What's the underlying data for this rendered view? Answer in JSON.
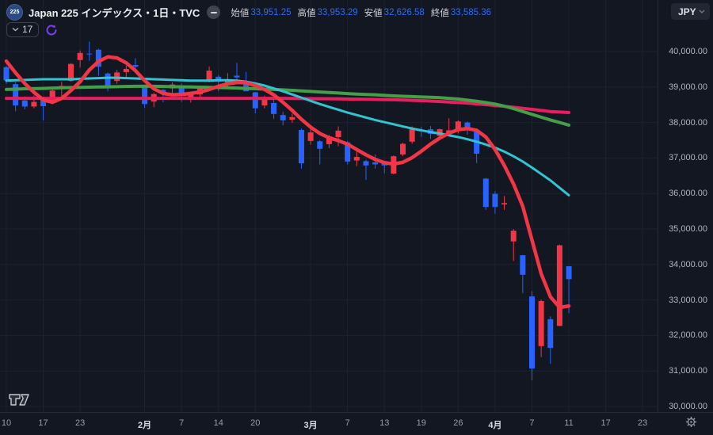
{
  "header": {
    "symbol_badge": "225",
    "title": "Japan 225 インデックス・1日・TVC",
    "ohlc": [
      {
        "label": "始値",
        "value": "33,951.25"
      },
      {
        "label": "高値",
        "value": "33,953.29"
      },
      {
        "label": "安値",
        "value": "32,626.58"
      },
      {
        "label": "終値",
        "value": "33,585.36"
      }
    ],
    "indicators_count": "17",
    "currency_button": "JPY"
  },
  "colors": {
    "background": "#131722",
    "grid": "#1d2231",
    "candle_up": "#f23645",
    "candle_down": "#2962ff",
    "value_text": "#2e6bf2",
    "axis_text": "#b2b5be",
    "sync_icon": "#7b3ff2"
  },
  "chart_data": {
    "type": "candlestick",
    "title": "Japan 225 インデックス・1日・TVC",
    "interval": "1日",
    "currency": "JPY",
    "legend_note": "red = bullish (陽線), blue = bearish (陰線)",
    "ylim": [
      29800,
      40400
    ],
    "grid": true,
    "y_axis": {
      "ticks": [
        {
          "value": 40000,
          "label": "40,000.00"
        },
        {
          "value": 39000,
          "label": "39,000.00"
        },
        {
          "value": 38000,
          "label": "38,000.00"
        },
        {
          "value": 37000,
          "label": "37,000.00"
        },
        {
          "value": 36000,
          "label": "36,000.00"
        },
        {
          "value": 35000,
          "label": "35,000.00"
        },
        {
          "value": 34000,
          "label": "34,000.00"
        },
        {
          "value": 33000,
          "label": "33,000.00"
        },
        {
          "value": 32000,
          "label": "32,000.00"
        },
        {
          "value": 31000,
          "label": "31,000.00"
        },
        {
          "value": 30000,
          "label": "30,000.00"
        }
      ]
    },
    "x_axis": {
      "ticks": [
        {
          "index": 0,
          "label": "10",
          "bold": false
        },
        {
          "index": 4,
          "label": "17",
          "bold": false
        },
        {
          "index": 8,
          "label": "23",
          "bold": false
        },
        {
          "index": 15,
          "label": "2月",
          "bold": true
        },
        {
          "index": 19,
          "label": "7",
          "bold": false
        },
        {
          "index": 23,
          "label": "14",
          "bold": false
        },
        {
          "index": 27,
          "label": "20",
          "bold": false
        },
        {
          "index": 33,
          "label": "3月",
          "bold": true
        },
        {
          "index": 37,
          "label": "7",
          "bold": false
        },
        {
          "index": 41,
          "label": "13",
          "bold": false
        },
        {
          "index": 45,
          "label": "19",
          "bold": false
        },
        {
          "index": 49,
          "label": "26",
          "bold": false
        },
        {
          "index": 53,
          "label": "4月",
          "bold": true
        },
        {
          "index": 57,
          "label": "7",
          "bold": false
        },
        {
          "index": 61,
          "label": "11",
          "bold": false
        },
        {
          "index": 65,
          "label": "17",
          "bold": false
        },
        {
          "index": 69,
          "label": "23",
          "bold": false
        }
      ]
    },
    "candle_columns": [
      "date",
      "open",
      "high",
      "low",
      "close"
    ],
    "candles": [
      [
        "1/10",
        39560,
        39590,
        39090,
        39190
      ],
      [
        "1/14",
        39080,
        39140,
        38320,
        38480
      ],
      [
        "1/15",
        38620,
        38740,
        38370,
        38450
      ],
      [
        "1/16",
        38450,
        38760,
        38400,
        38580
      ],
      [
        "1/17",
        38640,
        38710,
        38060,
        38460
      ],
      [
        "1/20",
        38560,
        38930,
        38520,
        38900
      ],
      [
        "1/21",
        38990,
        39150,
        38720,
        39030
      ],
      [
        "1/22",
        39170,
        39670,
        39150,
        39650
      ],
      [
        "1/23",
        39760,
        40030,
        39550,
        39960
      ],
      [
        "1/24",
        39940,
        40280,
        39740,
        39930
      ],
      [
        "1/27",
        40050,
        40080,
        39320,
        39570
      ],
      [
        "1/28",
        39380,
        39410,
        38880,
        39020
      ],
      [
        "1/29",
        39170,
        39480,
        39090,
        39410
      ],
      [
        "1/30",
        39420,
        39600,
        39230,
        39510
      ],
      [
        "1/31",
        39620,
        39810,
        39410,
        39570
      ],
      [
        "2/3",
        38990,
        39000,
        38410,
        38520
      ],
      [
        "2/4",
        38590,
        38830,
        38430,
        38800
      ],
      [
        "2/5",
        38920,
        38940,
        38570,
        38830
      ],
      [
        "2/6",
        38960,
        39130,
        38800,
        39070
      ],
      [
        "2/7",
        39020,
        39100,
        38580,
        38790
      ],
      [
        "2/10",
        38670,
        38870,
        38560,
        38800
      ],
      [
        "2/12",
        38790,
        39030,
        38710,
        38960
      ],
      [
        "2/13",
        39180,
        39580,
        39130,
        39460
      ],
      [
        "2/14",
        39290,
        39340,
        38880,
        39150
      ],
      [
        "2/17",
        39060,
        39390,
        39010,
        39170
      ],
      [
        "2/18",
        39320,
        39680,
        39150,
        39270
      ],
      [
        "2/19",
        39160,
        39430,
        38960,
        38880
      ],
      [
        "2/20",
        38850,
        38860,
        38260,
        38400
      ],
      [
        "2/21",
        38480,
        38760,
        38400,
        38700
      ],
      [
        "2/25",
        38550,
        38660,
        38100,
        38240
      ],
      [
        "2/26",
        38210,
        38300,
        37920,
        38060
      ],
      [
        "2/27",
        38080,
        38250,
        37990,
        38150
      ],
      [
        "2/28",
        37790,
        37830,
        36700,
        36850
      ],
      [
        "3/3",
        37480,
        37890,
        37380,
        37720
      ],
      [
        "3/4",
        37470,
        37500,
        36820,
        37260
      ],
      [
        "3/5",
        37390,
        37650,
        37280,
        37610
      ],
      [
        "3/6",
        37590,
        37890,
        37330,
        37770
      ],
      [
        "3/7",
        37440,
        37480,
        36820,
        36900
      ],
      [
        "3/10",
        36930,
        37230,
        36770,
        37030
      ],
      [
        "3/11",
        36910,
        36950,
        36380,
        36790
      ],
      [
        "3/12",
        36880,
        37100,
        36700,
        36820
      ],
      [
        "3/13",
        36850,
        36910,
        36570,
        36790
      ],
      [
        "3/14",
        36560,
        37070,
        36540,
        37050
      ],
      [
        "3/17",
        37100,
        37430,
        37060,
        37400
      ],
      [
        "3/18",
        37460,
        37890,
        37400,
        37850
      ],
      [
        "3/19",
        37800,
        37880,
        37600,
        37750
      ],
      [
        "3/21",
        37810,
        37900,
        37540,
        37680
      ],
      [
        "3/24",
        37620,
        37830,
        37580,
        37810
      ],
      [
        "3/25",
        37680,
        38120,
        37640,
        37780
      ],
      [
        "3/26",
        37820,
        38060,
        37690,
        38030
      ],
      [
        "3/27",
        38000,
        38030,
        37660,
        37800
      ],
      [
        "3/28",
        37740,
        37760,
        36860,
        37120
      ],
      [
        "3/31",
        36420,
        36440,
        35540,
        35620
      ],
      [
        "4/1",
        35990,
        36060,
        35430,
        35620
      ],
      [
        "4/2",
        35690,
        35930,
        35540,
        35730
      ],
      [
        "4/3",
        34650,
        35000,
        34100,
        34950
      ],
      [
        "4/4",
        34260,
        34270,
        33190,
        33710
      ],
      [
        "4/7",
        33100,
        33250,
        30740,
        31070
      ],
      [
        "4/8",
        31700,
        33010,
        31390,
        32970
      ],
      [
        "4/9",
        32460,
        32540,
        31200,
        31650
      ],
      [
        "4/10",
        32270,
        34560,
        32260,
        34540
      ],
      [
        "4/11",
        33951.25,
        33953.29,
        32626.58,
        33585.36
      ]
    ],
    "moving_averages": [
      {
        "id": "ma-long-pink",
        "color": "#e91e5f",
        "width": 4,
        "values": [
          38680,
          38680,
          38680,
          38680,
          38680,
          38680,
          38680,
          38680,
          38680,
          38680,
          38680,
          38680,
          38680,
          38680,
          38680,
          38680,
          38680,
          38680,
          38680,
          38680,
          38680,
          38680,
          38680,
          38680,
          38680,
          38680,
          38680,
          38680,
          38680,
          38680,
          38680,
          38678,
          38675,
          38673,
          38670,
          38668,
          38665,
          38662,
          38658,
          38655,
          38650,
          38645,
          38640,
          38633,
          38625,
          38615,
          38605,
          38592,
          38578,
          38562,
          38545,
          38525,
          38505,
          38480,
          38455,
          38430,
          38400,
          38370,
          38340,
          38310,
          38295,
          38280
        ]
      },
      {
        "id": "ma-slow-green",
        "color": "#43a047",
        "width": 4,
        "values": [
          38930,
          38940,
          38950,
          38955,
          38960,
          38970,
          38980,
          38985,
          38990,
          38995,
          39000,
          39005,
          39010,
          39015,
          39020,
          39020,
          39020,
          39015,
          39010,
          39005,
          39000,
          38995,
          38990,
          38985,
          38980,
          38970,
          38960,
          38950,
          38940,
          38930,
          38920,
          38905,
          38890,
          38875,
          38860,
          38845,
          38830,
          38815,
          38800,
          38790,
          38780,
          38765,
          38750,
          38740,
          38730,
          38720,
          38710,
          38700,
          38680,
          38660,
          38630,
          38600,
          38560,
          38520,
          38460,
          38390,
          38310,
          38230,
          38150,
          38070,
          38000,
          37925
        ]
      },
      {
        "id": "ma-mid-cyan",
        "color": "#2fc6d2",
        "width": 3,
        "values": [
          39180,
          39190,
          39200,
          39210,
          39220,
          39220,
          39220,
          39220,
          39230,
          39240,
          39250,
          39260,
          39260,
          39250,
          39240,
          39230,
          39220,
          39210,
          39200,
          39190,
          39180,
          39180,
          39180,
          39190,
          39190,
          39180,
          39150,
          39100,
          39040,
          38960,
          38880,
          38790,
          38700,
          38610,
          38520,
          38440,
          38360,
          38280,
          38210,
          38140,
          38070,
          38010,
          37950,
          37890,
          37830,
          37780,
          37730,
          37690,
          37640,
          37590,
          37530,
          37460,
          37380,
          37290,
          37180,
          37050,
          36900,
          36730,
          36550,
          36370,
          36160,
          35950
        ]
      },
      {
        "id": "ma-fast-red",
        "color": "#f23645",
        "width": 4.5,
        "values": [
          39730,
          39400,
          39100,
          38850,
          38640,
          38570,
          38680,
          38900,
          39150,
          39480,
          39720,
          39850,
          39820,
          39680,
          39460,
          39180,
          38950,
          38820,
          38780,
          38790,
          38820,
          38860,
          38930,
          39020,
          39090,
          39130,
          39120,
          39040,
          38930,
          38780,
          38570,
          38340,
          38090,
          37870,
          37690,
          37570,
          37490,
          37390,
          37240,
          37090,
          36960,
          36870,
          36830,
          36880,
          37010,
          37190,
          37390,
          37560,
          37700,
          37800,
          37830,
          37780,
          37590,
          37240,
          36790,
          36270,
          35640,
          34690,
          33740,
          33090,
          32790,
          32830
        ]
      }
    ]
  }
}
